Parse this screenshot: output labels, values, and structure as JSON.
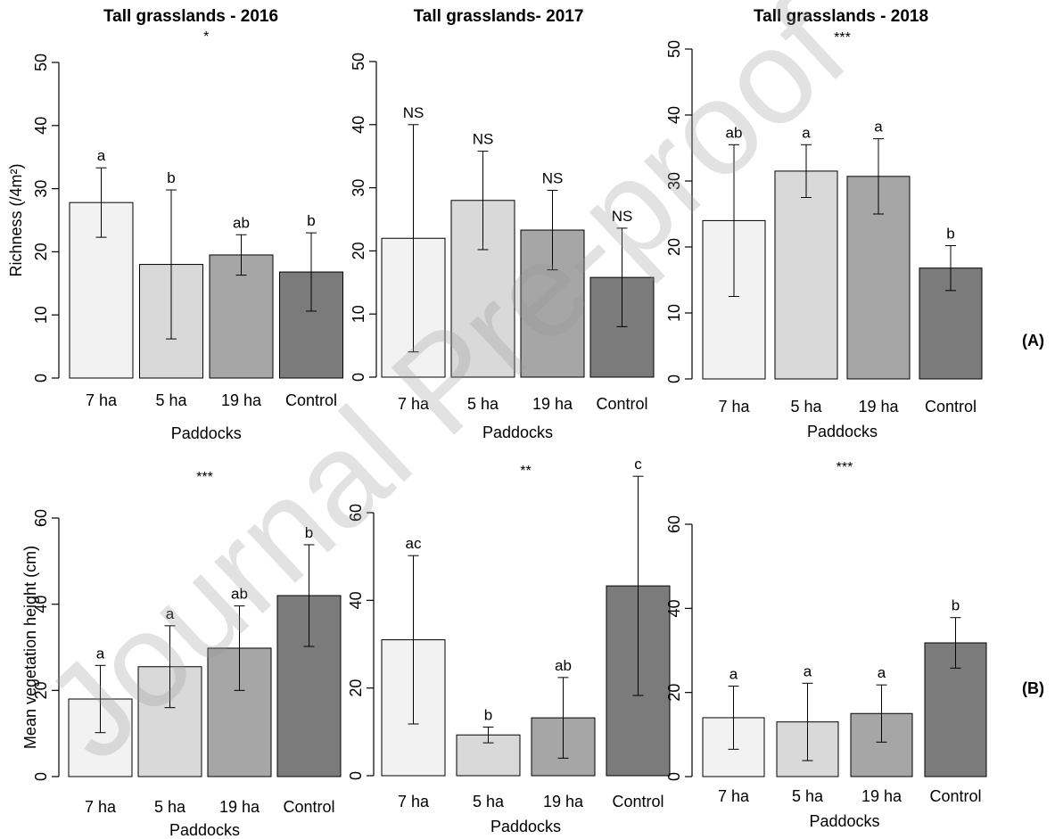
{
  "panel_labels": [
    "(A)",
    "(B)"
  ],
  "watermark": "Journal Pre-proof",
  "colors": {
    "bars": [
      "#f2f2f2",
      "#d9d9d9",
      "#a6a6a6",
      "#7b7b7b"
    ],
    "stroke": "#000000"
  },
  "chart_data": [
    {
      "type": "bar",
      "title": "Tall grasslands - 2016",
      "significance": "*",
      "categories": [
        "7 ha",
        "5 ha",
        "19 ha",
        "Control"
      ],
      "values": [
        27.8,
        18.0,
        19.5,
        16.8
      ],
      "errors": [
        5.5,
        11.8,
        3.2,
        6.2
      ],
      "letters": [
        "a",
        "b",
        "ab",
        "b"
      ],
      "xlabel": "Paddocks",
      "ylabel": "Richness (/4m²)",
      "ylim": [
        0,
        50
      ],
      "yticks": [
        "0",
        "10",
        "20",
        "30",
        "40",
        "50"
      ],
      "grid": false
    },
    {
      "type": "bar",
      "title": "Tall grasslands- 2017",
      "significance": "",
      "categories": [
        "7 ha",
        "5 ha",
        "19 ha",
        "Control"
      ],
      "values": [
        22.0,
        28.0,
        23.3,
        15.8
      ],
      "errors": [
        18.0,
        7.8,
        6.3,
        7.8
      ],
      "letters": [
        "NS",
        "NS",
        "NS",
        "NS"
      ],
      "xlabel": "Paddocks",
      "ylabel": "",
      "ylim": [
        0,
        50
      ],
      "yticks": [
        "0",
        "10",
        "20",
        "30",
        "40",
        "50"
      ],
      "grid": false
    },
    {
      "type": "bar",
      "title": "Tall grasslands - 2018",
      "significance": "***",
      "categories": [
        "7 ha",
        "5 ha",
        "19 ha",
        "Control"
      ],
      "values": [
        24.0,
        31.5,
        30.7,
        16.8
      ],
      "errors": [
        11.5,
        4.0,
        5.7,
        3.4
      ],
      "letters": [
        "ab",
        "a",
        "a",
        "b"
      ],
      "xlabel": "Paddocks",
      "ylabel": "",
      "ylim": [
        0,
        50
      ],
      "yticks": [
        "0",
        "10",
        "20",
        "30",
        "40",
        "50"
      ],
      "grid": false
    },
    {
      "type": "bar",
      "title": "",
      "significance": "***",
      "categories": [
        "7 ha",
        "5 ha",
        "19 ha",
        "Control"
      ],
      "values": [
        18.0,
        25.5,
        29.8,
        42.0
      ],
      "errors": [
        7.8,
        9.5,
        9.8,
        11.8
      ],
      "letters": [
        "a",
        "a",
        "ab",
        "b"
      ],
      "xlabel": "Paddocks",
      "ylabel": "Mean vegetation height (cm)",
      "ylim": [
        0,
        60
      ],
      "yticks": [
        "0",
        "20",
        "40",
        "60"
      ],
      "grid": false
    },
    {
      "type": "bar",
      "title": "",
      "significance": "**",
      "categories": [
        "7 ha",
        "5 ha",
        "19 ha",
        "Control"
      ],
      "values": [
        31.0,
        9.3,
        13.2,
        43.3
      ],
      "errors": [
        19.2,
        1.8,
        9.2,
        25.0
      ],
      "letters": [
        "ac",
        "b",
        "ab",
        "c"
      ],
      "xlabel": "Paddocks",
      "ylabel": "",
      "ylim": [
        0,
        60
      ],
      "yticks": [
        "0",
        "20",
        "40",
        "60"
      ],
      "grid": false
    },
    {
      "type": "bar",
      "title": "",
      "significance": "***",
      "categories": [
        "7 ha",
        "5 ha",
        "19 ha",
        "Control"
      ],
      "values": [
        14.0,
        13.0,
        15.0,
        31.8
      ],
      "errors": [
        7.5,
        9.2,
        6.8,
        6.0
      ],
      "letters": [
        "a",
        "a",
        "a",
        "b"
      ],
      "xlabel": "Paddocks",
      "ylabel": "",
      "ylim": [
        0,
        60
      ],
      "yticks": [
        "0",
        "20",
        "40",
        "60"
      ],
      "grid": false
    }
  ]
}
